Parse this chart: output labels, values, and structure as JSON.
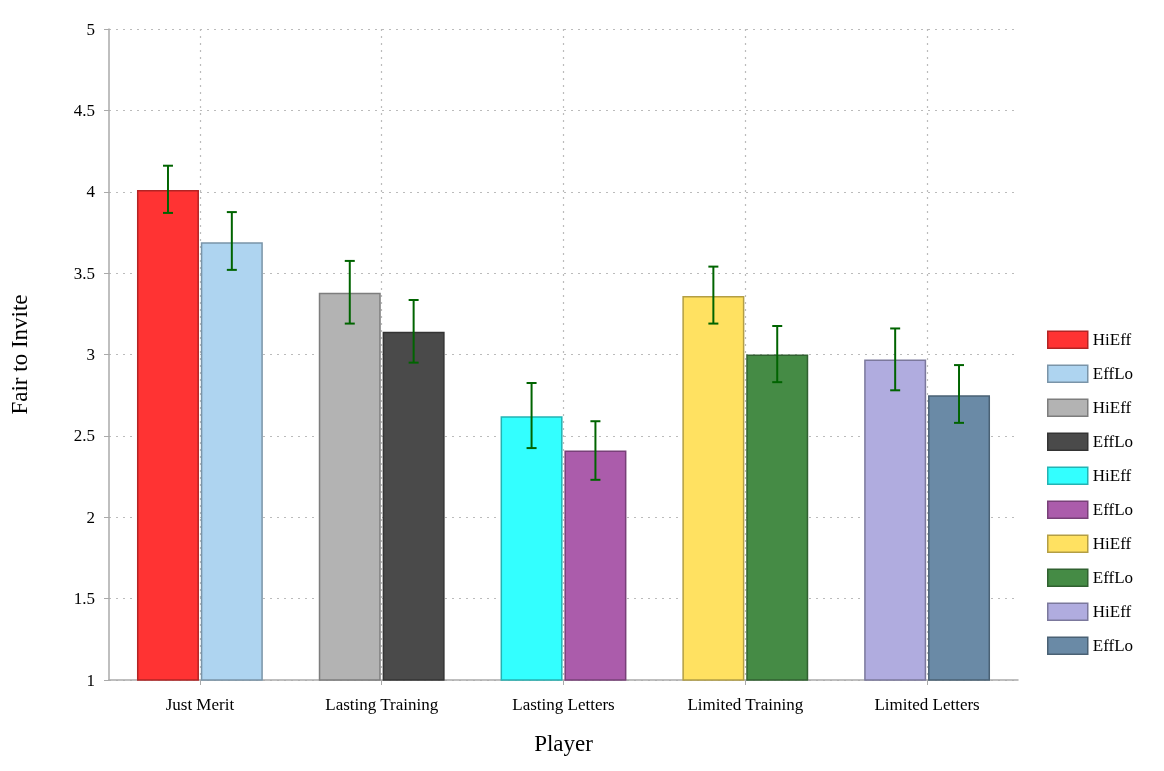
{
  "chart_data": {
    "type": "bar",
    "xlabel": "Player",
    "ylabel": "Fair to Invite",
    "categories": [
      "Just Merit",
      "Lasting Training",
      "Lasting Letters",
      "Limited Training",
      "Limited Letters"
    ],
    "series": [
      {
        "name": "HiEff",
        "color": "#ff3333",
        "values": [
          4.01,
          null,
          null,
          null,
          null
        ],
        "errors": [
          [
            3.87,
            4.16
          ],
          null,
          null,
          null,
          null
        ]
      },
      {
        "name": "EffLo",
        "color": "#aed4f0",
        "values": [
          3.69,
          null,
          null,
          null,
          null
        ],
        "errors": [
          [
            3.52,
            3.875
          ],
          null,
          null,
          null,
          null
        ]
      },
      {
        "name": "HiEff",
        "color": "#b3b3b3",
        "values": [
          null,
          3.38,
          null,
          null,
          null
        ],
        "errors": [
          null,
          [
            3.19,
            3.575
          ],
          null,
          null,
          null
        ]
      },
      {
        "name": "EffLo",
        "color": "#4a4a4a",
        "values": [
          null,
          3.14,
          null,
          null,
          null
        ],
        "errors": [
          null,
          [
            2.95,
            3.335
          ],
          null,
          null,
          null
        ]
      },
      {
        "name": "HiEff",
        "color": "#33ffff",
        "values": [
          null,
          null,
          2.62,
          null,
          null
        ],
        "errors": [
          null,
          null,
          [
            2.425,
            2.825
          ],
          null,
          null
        ]
      },
      {
        "name": "EffLo",
        "color": "#ab5cab",
        "values": [
          null,
          null,
          2.41,
          null,
          null
        ],
        "errors": [
          null,
          null,
          [
            2.23,
            2.59
          ],
          null,
          null
        ]
      },
      {
        "name": "HiEff",
        "color": "#ffe161",
        "values": [
          null,
          null,
          null,
          3.36,
          null
        ],
        "errors": [
          null,
          null,
          null,
          [
            3.19,
            3.54
          ],
          null
        ]
      },
      {
        "name": "EffLo",
        "color": "#458b45",
        "values": [
          null,
          null,
          null,
          3.0,
          null
        ],
        "errors": [
          null,
          null,
          null,
          [
            2.83,
            3.175
          ],
          null
        ]
      },
      {
        "name": "HiEff",
        "color": "#b0acdf",
        "values": [
          null,
          null,
          null,
          null,
          2.97
        ],
        "errors": [
          null,
          null,
          null,
          null,
          [
            2.78,
            3.16
          ]
        ]
      },
      {
        "name": "EffLo",
        "color": "#6a8aa6",
        "values": [
          null,
          null,
          null,
          null,
          2.75
        ],
        "errors": [
          null,
          null,
          null,
          null,
          [
            2.58,
            2.935
          ]
        ]
      }
    ],
    "ylim": [
      1,
      5
    ],
    "yticks": [
      1,
      1.5,
      2,
      2.5,
      3,
      3.5,
      4,
      4.5,
      5
    ],
    "grid": true,
    "legend": "right"
  }
}
